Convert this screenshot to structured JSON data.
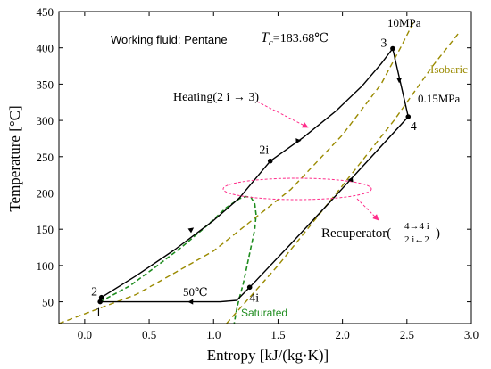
{
  "chart_data": {
    "type": "line",
    "xlabel": "Entropy [kJ/(kg·K)]",
    "ylabel": "Temperature [°C]",
    "xlim": [
      -0.2,
      3.0
    ],
    "ylim": [
      20,
      450
    ],
    "xticks": [
      0.0,
      0.5,
      1.0,
      1.5,
      2.0,
      2.5,
      3.0
    ],
    "xtick_labels": [
      "0.0",
      "0.5",
      "1.0",
      "1.5",
      "2.0",
      "2.5",
      "3.0"
    ],
    "yticks": [
      50,
      100,
      150,
      200,
      250,
      300,
      350,
      400,
      450
    ],
    "ytick_labels": [
      "50",
      "100",
      "150",
      "200",
      "250",
      "300",
      "350",
      "400",
      "450"
    ],
    "grid": false,
    "colors": {
      "cycle": "#000000",
      "saturated": "#1e8c1e",
      "isobaric": "#9a8a00",
      "annotation": "#ff2d8a"
    },
    "points": [
      {
        "id": "1",
        "label": "1",
        "x": 0.12,
        "y": 50
      },
      {
        "id": "2",
        "label": "2",
        "x": 0.13,
        "y": 56
      },
      {
        "id": "2i",
        "label": "2i",
        "x": 1.44,
        "y": 244
      },
      {
        "id": "3",
        "label": "3",
        "x": 2.39,
        "y": 399
      },
      {
        "id": "4",
        "label": "4",
        "x": 2.51,
        "y": 305
      },
      {
        "id": "4i",
        "label": "4i",
        "x": 1.28,
        "y": 70
      }
    ],
    "series": [
      {
        "role": "saturation-dome",
        "style": "dashed",
        "x": [
          0.12,
          0.35,
          0.55,
          0.75,
          0.95,
          1.1,
          1.2,
          1.25,
          1.29,
          1.32,
          1.33,
          1.32,
          1.29,
          1.26,
          1.23,
          1.2,
          1.18,
          1.16
        ],
        "y": [
          50,
          72,
          98,
          125,
          155,
          180,
          192,
          195,
          194,
          185,
          170,
          150,
          125,
          100,
          75,
          55,
          40,
          20
        ]
      },
      {
        "role": "isobar-high",
        "style": "dashed",
        "x": [
          -0.2,
          0.4,
          1.0,
          1.6,
          2.0,
          2.3,
          2.45,
          2.55
        ],
        "y": [
          20,
          60,
          120,
          205,
          280,
          350,
          400,
          435
        ]
      },
      {
        "role": "isobar-low",
        "style": "dashed",
        "x": [
          1.1,
          1.5,
          2.0,
          2.4,
          2.7,
          2.9
        ],
        "y": [
          20,
          100,
          210,
          300,
          375,
          420
        ]
      },
      {
        "role": "cycle-2-3",
        "style": "solid",
        "x": [
          0.13,
          0.4,
          0.7,
          1.0,
          1.2,
          1.44,
          1.7,
          1.95,
          2.15,
          2.3,
          2.39
        ],
        "y": [
          56,
          86,
          122,
          162,
          193,
          244,
          277,
          313,
          347,
          378,
          399
        ]
      },
      {
        "role": "cycle-3-4",
        "style": "solid",
        "x": [
          2.39,
          2.45,
          2.51
        ],
        "y": [
          399,
          352,
          305
        ]
      },
      {
        "role": "cycle-4-4i",
        "style": "solid",
        "x": [
          2.51,
          2.2,
          1.9,
          1.6,
          1.28
        ],
        "y": [
          305,
          245,
          187,
          130,
          70
        ]
      },
      {
        "role": "cycle-4i-1",
        "style": "solid",
        "x": [
          1.28,
          1.18,
          1.05,
          0.12
        ],
        "y": [
          70,
          52,
          50,
          50
        ]
      }
    ],
    "arrows": [
      {
        "x": 0.83,
        "y": 150,
        "dx": 0.02,
        "dy": 2.6
      },
      {
        "x": 1.66,
        "y": 272,
        "dx": 0.03,
        "dy": 0.4
      },
      {
        "x": 2.44,
        "y": 355,
        "dx": 0.0,
        "dy": -1
      },
      {
        "x": 2.06,
        "y": 218,
        "dx": -0.03,
        "dy": -0.6
      },
      {
        "x": 0.82,
        "y": 50,
        "dx": -1,
        "dy": 0
      }
    ],
    "annotations": {
      "fluid": "Working fluid: Pentane",
      "tc_symbol": "T",
      "tc_sub": "c",
      "tc_value": "=183.68℃",
      "high_pressure": "10MPa",
      "low_pressure": "0.15MPa",
      "isobaric": "Isobaric",
      "heating": "Heating(2 i → 3)",
      "recuperator": "Recuperator(",
      "recuperator_top": "4→4 i",
      "recuperator_bottom": "2 i←2",
      "recuperator_close": ")",
      "cond_temp": "50℃",
      "saturated": "Saturated"
    }
  }
}
